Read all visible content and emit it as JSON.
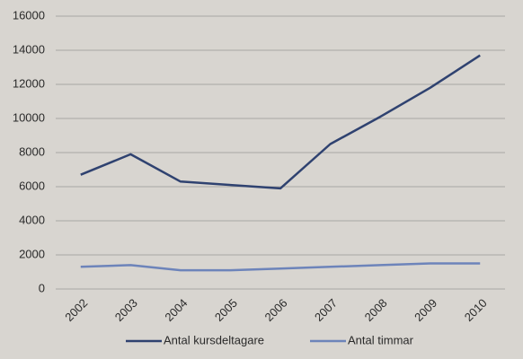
{
  "chart_data": {
    "type": "line",
    "categories": [
      "2002",
      "2003",
      "2004",
      "2005",
      "2006",
      "2007",
      "2008",
      "2009",
      "2010"
    ],
    "series": [
      {
        "name": "Antal kursdeltagare",
        "color": "#2f4270",
        "values": [
          6700,
          7900,
          6300,
          6100,
          5900,
          8500,
          10100,
          11800,
          13700
        ]
      },
      {
        "name": "Antal timmar",
        "color": "#6d84ba",
        "values": [
          1300,
          1400,
          1100,
          1100,
          1200,
          1300,
          1400,
          1500,
          1500
        ]
      }
    ],
    "ylim": [
      0,
      16000
    ],
    "yticks": [
      0,
      2000,
      4000,
      6000,
      8000,
      10000,
      12000,
      14000,
      16000
    ],
    "grid": true,
    "legend": "bottom"
  }
}
